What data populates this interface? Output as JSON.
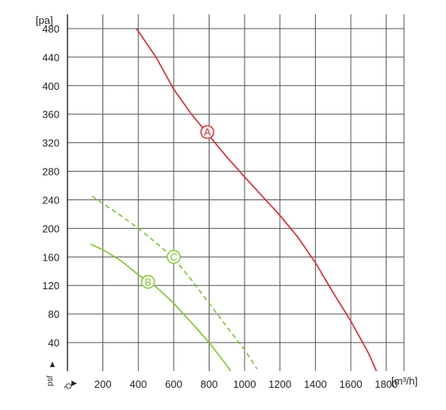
{
  "chart_data": {
    "type": "line",
    "y_unit_label": "[pa]",
    "x_unit_label": "[m³/h]",
    "y_axis_symbol": "psf",
    "x_axis_symbol": "Q",
    "xlim": [
      0,
      1900
    ],
    "ylim": [
      0,
      500
    ],
    "x_ticks": [
      200,
      400,
      600,
      800,
      1000,
      1200,
      1400,
      1600,
      1800
    ],
    "y_ticks": [
      40,
      80,
      120,
      160,
      200,
      240,
      280,
      320,
      360,
      400,
      440,
      480
    ],
    "grid": true,
    "series": [
      {
        "name": "A",
        "color": "#e8202a",
        "dashed": false,
        "points": [
          [
            390,
            480
          ],
          [
            500,
            440
          ],
          [
            600,
            395
          ],
          [
            700,
            360
          ],
          [
            800,
            330
          ],
          [
            900,
            300
          ],
          [
            1000,
            272
          ],
          [
            1100,
            245
          ],
          [
            1200,
            218
          ],
          [
            1300,
            188
          ],
          [
            1400,
            152
          ],
          [
            1500,
            110
          ],
          [
            1600,
            70
          ],
          [
            1700,
            25
          ],
          [
            1745,
            0
          ]
        ],
        "marker": {
          "label": "A",
          "x": 790,
          "y": 335
        }
      },
      {
        "name": "C",
        "color": "#7cc62a",
        "dashed": true,
        "points": [
          [
            140,
            245
          ],
          [
            300,
            218
          ],
          [
            400,
            200
          ],
          [
            500,
            180
          ],
          [
            600,
            158
          ],
          [
            700,
            128
          ],
          [
            800,
            95
          ],
          [
            900,
            62
          ],
          [
            1000,
            30
          ],
          [
            1070,
            3
          ]
        ],
        "marker": {
          "label": "C",
          "x": 600,
          "y": 160
        }
      },
      {
        "name": "B",
        "color": "#7cc62a",
        "dashed": false,
        "points": [
          [
            130,
            178
          ],
          [
            200,
            170
          ],
          [
            300,
            155
          ],
          [
            400,
            135
          ],
          [
            500,
            118
          ],
          [
            600,
            95
          ],
          [
            700,
            68
          ],
          [
            800,
            40
          ],
          [
            900,
            8
          ],
          [
            920,
            0
          ]
        ],
        "marker": {
          "label": "B",
          "x": 455,
          "y": 125
        }
      }
    ]
  }
}
